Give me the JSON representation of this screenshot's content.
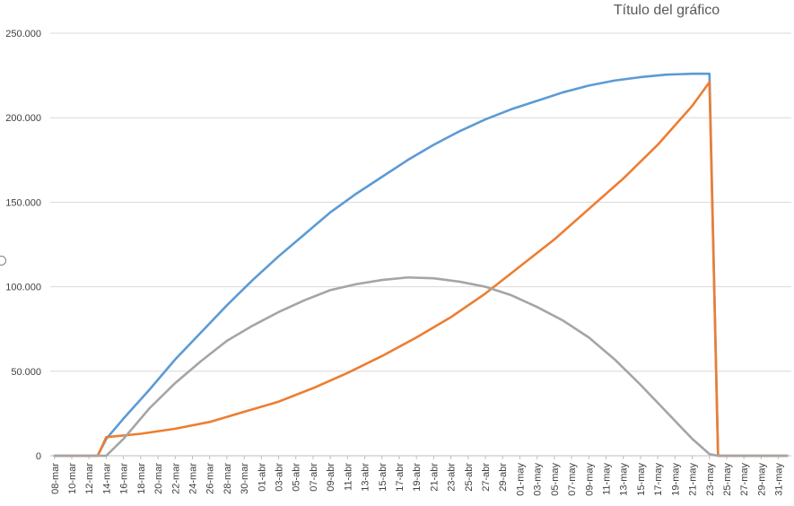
{
  "chart_data": {
    "type": "line",
    "title": "Título del gráfico",
    "xlabel": "",
    "ylabel": "",
    "ylim": [
      0,
      250000
    ],
    "yticks": [
      0,
      50000,
      100000,
      150000,
      200000,
      250000
    ],
    "ytick_labels": [
      "0",
      "50.000",
      "100.000",
      "150.000",
      "200.000",
      "250.000"
    ],
    "grid": true,
    "legend": "none",
    "x_start": "2020-03-08",
    "n_days": 86,
    "xtick_labels": [
      "08-mar",
      "10-mar",
      "12-mar",
      "14-mar",
      "16-mar",
      "18-mar",
      "20-mar",
      "22-mar",
      "24-mar",
      "26-mar",
      "28-mar",
      "30-mar",
      "01-abr",
      "03-abr",
      "05-abr",
      "07-abr",
      "09-abr",
      "11-abr",
      "13-abr",
      "15-abr",
      "17-abr",
      "19-abr",
      "21-abr",
      "23-abr",
      "25-abr",
      "27-abr",
      "29-abr",
      "01-may",
      "03-may",
      "05-may",
      "07-may",
      "09-may",
      "11-may",
      "13-may",
      "15-may",
      "17-may",
      "19-may",
      "21-may",
      "23-may",
      "25-may",
      "27-may",
      "29-may",
      "31-may"
    ],
    "series": [
      {
        "color": "#5b9bd5",
        "points": [
          [
            "2020-03-08",
            0
          ],
          [
            "2020-03-13",
            0
          ],
          [
            "2020-03-14",
            10000
          ],
          [
            "2020-03-16",
            22000
          ],
          [
            "2020-03-19",
            39000
          ],
          [
            "2020-03-22",
            57000
          ],
          [
            "2020-03-25",
            73000
          ],
          [
            "2020-03-28",
            89000
          ],
          [
            "2020-03-31",
            104000
          ],
          [
            "2020-04-03",
            118000
          ],
          [
            "2020-04-06",
            131000
          ],
          [
            "2020-04-09",
            144000
          ],
          [
            "2020-04-12",
            155000
          ],
          [
            "2020-04-15",
            165000
          ],
          [
            "2020-04-18",
            175000
          ],
          [
            "2020-04-21",
            184000
          ],
          [
            "2020-04-24",
            192000
          ],
          [
            "2020-04-27",
            199000
          ],
          [
            "2020-04-30",
            205000
          ],
          [
            "2020-05-03",
            210000
          ],
          [
            "2020-05-06",
            215000
          ],
          [
            "2020-05-09",
            219000
          ],
          [
            "2020-05-12",
            222000
          ],
          [
            "2020-05-15",
            224000
          ],
          [
            "2020-05-18",
            225500
          ],
          [
            "2020-05-21",
            226000
          ],
          [
            "2020-05-23",
            226000
          ],
          [
            "2020-05-24",
            0
          ],
          [
            "2020-06-01",
            0
          ]
        ]
      },
      {
        "color": "#ed7d31",
        "points": [
          [
            "2020-03-08",
            0
          ],
          [
            "2020-03-13",
            0
          ],
          [
            "2020-03-14",
            11000
          ],
          [
            "2020-03-18",
            13000
          ],
          [
            "2020-03-22",
            16000
          ],
          [
            "2020-03-26",
            20000
          ],
          [
            "2020-03-30",
            26000
          ],
          [
            "2020-04-03",
            32000
          ],
          [
            "2020-04-07",
            40000
          ],
          [
            "2020-04-11",
            49000
          ],
          [
            "2020-04-15",
            59000
          ],
          [
            "2020-04-19",
            70000
          ],
          [
            "2020-04-23",
            82000
          ],
          [
            "2020-04-27",
            96000
          ],
          [
            "2020-05-01",
            112000
          ],
          [
            "2020-05-05",
            128000
          ],
          [
            "2020-05-09",
            146000
          ],
          [
            "2020-05-13",
            164000
          ],
          [
            "2020-05-17",
            184000
          ],
          [
            "2020-05-21",
            207000
          ],
          [
            "2020-05-23",
            221000
          ],
          [
            "2020-05-24",
            0
          ],
          [
            "2020-06-01",
            0
          ]
        ]
      },
      {
        "color": "#a5a5a5",
        "points": [
          [
            "2020-03-08",
            0
          ],
          [
            "2020-03-14",
            0
          ],
          [
            "2020-03-16",
            10000
          ],
          [
            "2020-03-19",
            28000
          ],
          [
            "2020-03-22",
            43000
          ],
          [
            "2020-03-25",
            56000
          ],
          [
            "2020-03-28",
            68000
          ],
          [
            "2020-03-31",
            77000
          ],
          [
            "2020-04-03",
            85000
          ],
          [
            "2020-04-06",
            92000
          ],
          [
            "2020-04-09",
            98000
          ],
          [
            "2020-04-12",
            101500
          ],
          [
            "2020-04-15",
            104000
          ],
          [
            "2020-04-18",
            105500
          ],
          [
            "2020-04-21",
            105000
          ],
          [
            "2020-04-24",
            103000
          ],
          [
            "2020-04-27",
            100000
          ],
          [
            "2020-04-30",
            95000
          ],
          [
            "2020-05-03",
            88000
          ],
          [
            "2020-05-06",
            80000
          ],
          [
            "2020-05-09",
            70000
          ],
          [
            "2020-05-12",
            57000
          ],
          [
            "2020-05-15",
            42000
          ],
          [
            "2020-05-18",
            26000
          ],
          [
            "2020-05-21",
            10000
          ],
          [
            "2020-05-23",
            1000
          ],
          [
            "2020-05-24",
            0
          ],
          [
            "2020-06-01",
            0
          ]
        ]
      }
    ]
  }
}
